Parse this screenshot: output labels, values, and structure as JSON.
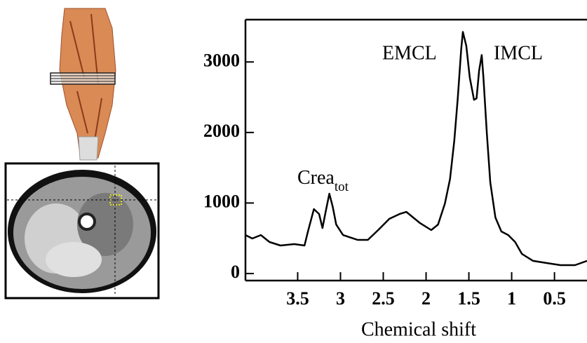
{
  "chart_data": {
    "type": "line",
    "x_label": "Chemical shift",
    "annotations": [
      {
        "text": "Crea",
        "subscript": "tot"
      },
      {
        "text": "EMCL"
      },
      {
        "text": "IMCL"
      }
    ],
    "x": [
      4.11,
      4.03,
      3.93,
      3.83,
      3.7,
      3.54,
      3.42,
      3.38,
      3.31,
      3.25,
      3.21,
      3.17,
      3.13,
      3.09,
      3.05,
      2.97,
      2.8,
      2.68,
      2.56,
      2.43,
      2.31,
      2.23,
      2.15,
      2.07,
      1.94,
      1.86,
      1.78,
      1.72,
      1.67,
      1.63,
      1.59,
      1.57,
      1.53,
      1.49,
      1.44,
      1.41,
      1.38,
      1.35,
      1.33,
      1.29,
      1.25,
      1.19,
      1.12,
      1.04,
      0.96,
      0.88,
      0.75,
      0.59,
      0.43,
      0.26,
      0.12
    ],
    "values": [
      546,
      497,
      546,
      447,
      397,
      417,
      397,
      596,
      914,
      844,
      645,
      894,
      1132,
      943,
      695,
      546,
      477,
      477,
      616,
      775,
      844,
      874,
      794,
      715,
      616,
      695,
      993,
      1341,
      1887,
      2483,
      3178,
      3426,
      3227,
      2781,
      2463,
      2483,
      2880,
      3098,
      2781,
      1986,
      1291,
      794,
      596,
      546,
      447,
      278,
      179,
      149,
      119,
      119,
      179
    ],
    "color": "#000000",
    "xlim": [
      4.11,
      0.12
    ],
    "xticks": [
      3.5,
      3,
      2.5,
      2,
      1.5,
      1,
      0.5
    ],
    "ylim": [
      -100,
      3600
    ],
    "yticks": [
      0,
      1000,
      2000,
      3000
    ]
  }
}
